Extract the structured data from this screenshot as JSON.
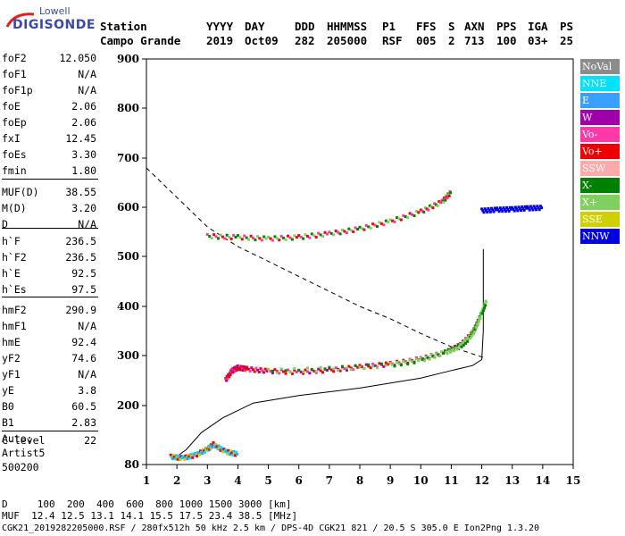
{
  "logo": {
    "top": "Lowell",
    "main": "DIGISONDE"
  },
  "header": {
    "row1": [
      "Station",
      "YYYY",
      "DAY",
      "DDD",
      "HHMMSS",
      "P1",
      "FFS",
      "S",
      "AXN",
      "PPS",
      "IGA",
      "PS"
    ],
    "row2": [
      "Campo Grande",
      "2019",
      "Oct09",
      "282",
      "205000",
      "RSF",
      "005",
      "2",
      "713",
      "100",
      "03+",
      "25"
    ]
  },
  "params": [
    {
      "label": "foF2",
      "value": "12.050"
    },
    {
      "label": "foF1",
      "value": "N/A"
    },
    {
      "label": "foF1p",
      "value": "N/A"
    },
    {
      "label": "foE",
      "value": "2.06"
    },
    {
      "label": "foEp",
      "value": "2.06"
    },
    {
      "label": "fxI",
      "value": "12.45"
    },
    {
      "label": "foEs",
      "value": "3.30"
    },
    {
      "label": "fmin",
      "value": "1.80"
    },
    {
      "label": "MUF(D)",
      "value": "38.55"
    },
    {
      "label": "M(D)",
      "value": "3.20"
    },
    {
      "label": "D",
      "value": "N/A"
    },
    {
      "label": "h`F",
      "value": "236.5"
    },
    {
      "label": "h`F2",
      "value": "236.5"
    },
    {
      "label": "h`E",
      "value": "92.5"
    },
    {
      "label": "h`Es",
      "value": "97.5"
    },
    {
      "label": "hmF2",
      "value": "290.9"
    },
    {
      "label": "hmF1",
      "value": "N/A"
    },
    {
      "label": "hmE",
      "value": "92.4"
    },
    {
      "label": "yF2",
      "value": "74.6"
    },
    {
      "label": "yF1",
      "value": "N/A"
    },
    {
      "label": "yE",
      "value": "3.8"
    },
    {
      "label": "B0",
      "value": "60.5"
    },
    {
      "label": "B1",
      "value": "2.83"
    },
    {
      "label": "C-level",
      "value": "22"
    }
  ],
  "auto": {
    "line1": "Auto:",
    "line2": "Artist5",
    "line3": "500200"
  },
  "legend": [
    {
      "label": "NoVal",
      "color": "#8c8c8c"
    },
    {
      "label": "NNE",
      "color": "#00e0ff"
    },
    {
      "label": "E",
      "color": "#3aa0ff"
    },
    {
      "label": "W",
      "color": "#a000a8"
    },
    {
      "label": "Vo-",
      "color": "#ff3aa8"
    },
    {
      "label": "Vo+",
      "color": "#ee0000"
    },
    {
      "label": "SSW",
      "color": "#ffaaaa"
    },
    {
      "label": "X-",
      "color": "#008000"
    },
    {
      "label": "X+",
      "color": "#80d060"
    },
    {
      "label": "SSE",
      "color": "#d0d000"
    },
    {
      "label": "NNW",
      "color": "#0000e0"
    }
  ],
  "bottom": {
    "line1": "D     100  200  400  600  800 1000 1500 3000 [km]",
    "line2": "MUF  12.4 12.5 13.1 14.1 15.5 17.5 23.4 38.5 [MHz]",
    "line3": "CGK21_2019282205000.RSF / 280fx512h 50 kHz 2.5 km / DPS-4D CGK21 821 / 20.5 S 305.0 E Ion2Png 1.3.20"
  },
  "chart_data": {
    "type": "scatter",
    "xlim": [
      1,
      15
    ],
    "ylim": [
      80,
      900
    ],
    "x_ticks": [
      1,
      2,
      3,
      4,
      5,
      6,
      7,
      8,
      9,
      10,
      11,
      12,
      13,
      14,
      15
    ],
    "y_ticks": [
      80,
      200,
      300,
      400,
      500,
      600,
      700,
      800,
      900
    ],
    "series": [
      {
        "label": "ordinary-trace",
        "points": [
          [
            3.6,
            250
          ],
          [
            3.8,
            268
          ],
          [
            4.0,
            275
          ],
          [
            4.3,
            272
          ],
          [
            5,
            268
          ],
          [
            6,
            266
          ],
          [
            7,
            270
          ],
          [
            8,
            276
          ],
          [
            9,
            282
          ],
          [
            10,
            292
          ],
          [
            10.8,
            305
          ],
          [
            11.3,
            320
          ],
          [
            11.7,
            345
          ],
          [
            11.9,
            370
          ]
        ]
      },
      {
        "label": "extraordinary-trace",
        "points": [
          [
            5,
            268
          ],
          [
            7,
            272
          ],
          [
            9,
            280
          ],
          [
            10,
            290
          ],
          [
            10.8,
            305
          ],
          [
            11.3,
            318
          ],
          [
            11.6,
            335
          ],
          [
            11.8,
            355
          ],
          [
            12.0,
            385
          ],
          [
            12.15,
            410
          ]
        ]
      },
      {
        "label": "multihop-trace",
        "points": [
          [
            3.0,
            540
          ],
          [
            4,
            538
          ],
          [
            5,
            535
          ],
          [
            6,
            538
          ],
          [
            7,
            545
          ],
          [
            8,
            555
          ],
          [
            9,
            570
          ],
          [
            10,
            590
          ],
          [
            10.7,
            610
          ],
          [
            11,
            630
          ]
        ]
      },
      {
        "label": "low-echoes",
        "points": [
          [
            1.8,
            95
          ],
          [
            2.2,
            92
          ],
          [
            2.6,
            98
          ],
          [
            3.0,
            110
          ],
          [
            3.2,
            120
          ],
          [
            3.6,
            105
          ],
          [
            4.0,
            100
          ]
        ]
      },
      {
        "label": "nnw-band",
        "points": [
          [
            12.0,
            592
          ],
          [
            12.5,
            594
          ],
          [
            13.0,
            595
          ],
          [
            13.5,
            597
          ],
          [
            14.0,
            598
          ]
        ]
      }
    ],
    "profile_solid": [
      [
        1.9,
        92
      ],
      [
        2.3,
        110
      ],
      [
        2.8,
        145
      ],
      [
        3.5,
        175
      ],
      [
        4.5,
        205
      ],
      [
        6,
        220
      ],
      [
        8,
        235
      ],
      [
        10,
        255
      ],
      [
        11,
        270
      ],
      [
        11.7,
        280
      ],
      [
        12.0,
        292
      ],
      [
        12.05,
        350
      ],
      [
        12.05,
        450
      ],
      [
        12.05,
        515
      ]
    ],
    "profile_dashed": [
      [
        1,
        680
      ],
      [
        2,
        620
      ],
      [
        3,
        560
      ],
      [
        4,
        520
      ],
      [
        5,
        490
      ],
      [
        6,
        460
      ],
      [
        7,
        430
      ],
      [
        8,
        400
      ],
      [
        9,
        375
      ],
      [
        10,
        345
      ],
      [
        11,
        318
      ],
      [
        12.05,
        296
      ]
    ]
  }
}
